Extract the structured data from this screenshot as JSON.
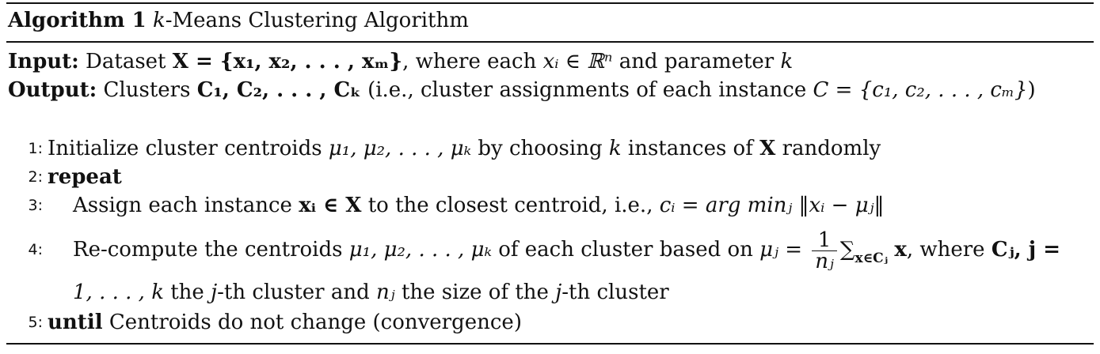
{
  "algorithm": {
    "label": "Algorithm 1",
    "title_k": "k",
    "title_rest": "-Means Clustering Algorithm"
  },
  "input": {
    "label": "Input:",
    "text_before": "Dataset",
    "math_set": "X = {x₁, x₂, . . . , xₘ}",
    "text_middle": ", where each",
    "math_elem": "xᵢ ∈ ℝⁿ",
    "text_after": "and parameter",
    "param": "k"
  },
  "output": {
    "label": "Output:",
    "text_before": "Clusters",
    "math_clusters": "C₁, C₂, . . . , Cₖ",
    "text_middle": "(i.e., cluster assignments of each instance",
    "math_assign": "C = {c₁, c₂, . . . , cₘ}",
    "text_after": ")"
  },
  "steps": [
    {
      "number": "1:",
      "text_a": "Initialize cluster centroids",
      "math_a": "μ₁, μ₂, . . . , μₖ",
      "text_b": "by choosing",
      "math_b": "k",
      "text_c": "instances of",
      "math_c": "X",
      "text_d": "randomly"
    },
    {
      "number": "2:",
      "keyword": "repeat"
    },
    {
      "number": "3:",
      "text_a": "Assign each instance",
      "math_a": "xᵢ ∈ X",
      "text_b": "to the closest centroid, i.e.,",
      "math_b": "cᵢ = arg minⱼ ‖xᵢ − μⱼ‖"
    },
    {
      "number": "4:",
      "text_a": "Re-compute the centroids",
      "math_a": "μ₁, μ₂, . . . , μₖ",
      "text_b": "of each cluster based on",
      "math_lhs": "μⱼ =",
      "frac_num": "1",
      "frac_den": "nⱼ",
      "math_sum": "∑",
      "math_sum_sub": "x∈Cⱼ",
      "math_x": "x",
      "text_c": ", where",
      "math_c": "Cⱼ, j =",
      "math_d": "1, . . . , k",
      "text_d": "the",
      "math_e": "j",
      "text_e": "-th cluster and",
      "math_f": "nⱼ",
      "text_f": "the size of the",
      "math_g": "j",
      "text_g": "-th cluster"
    },
    {
      "number": "5:",
      "keyword": "until",
      "text_a": "Centroids do not change (convergence)"
    }
  ]
}
